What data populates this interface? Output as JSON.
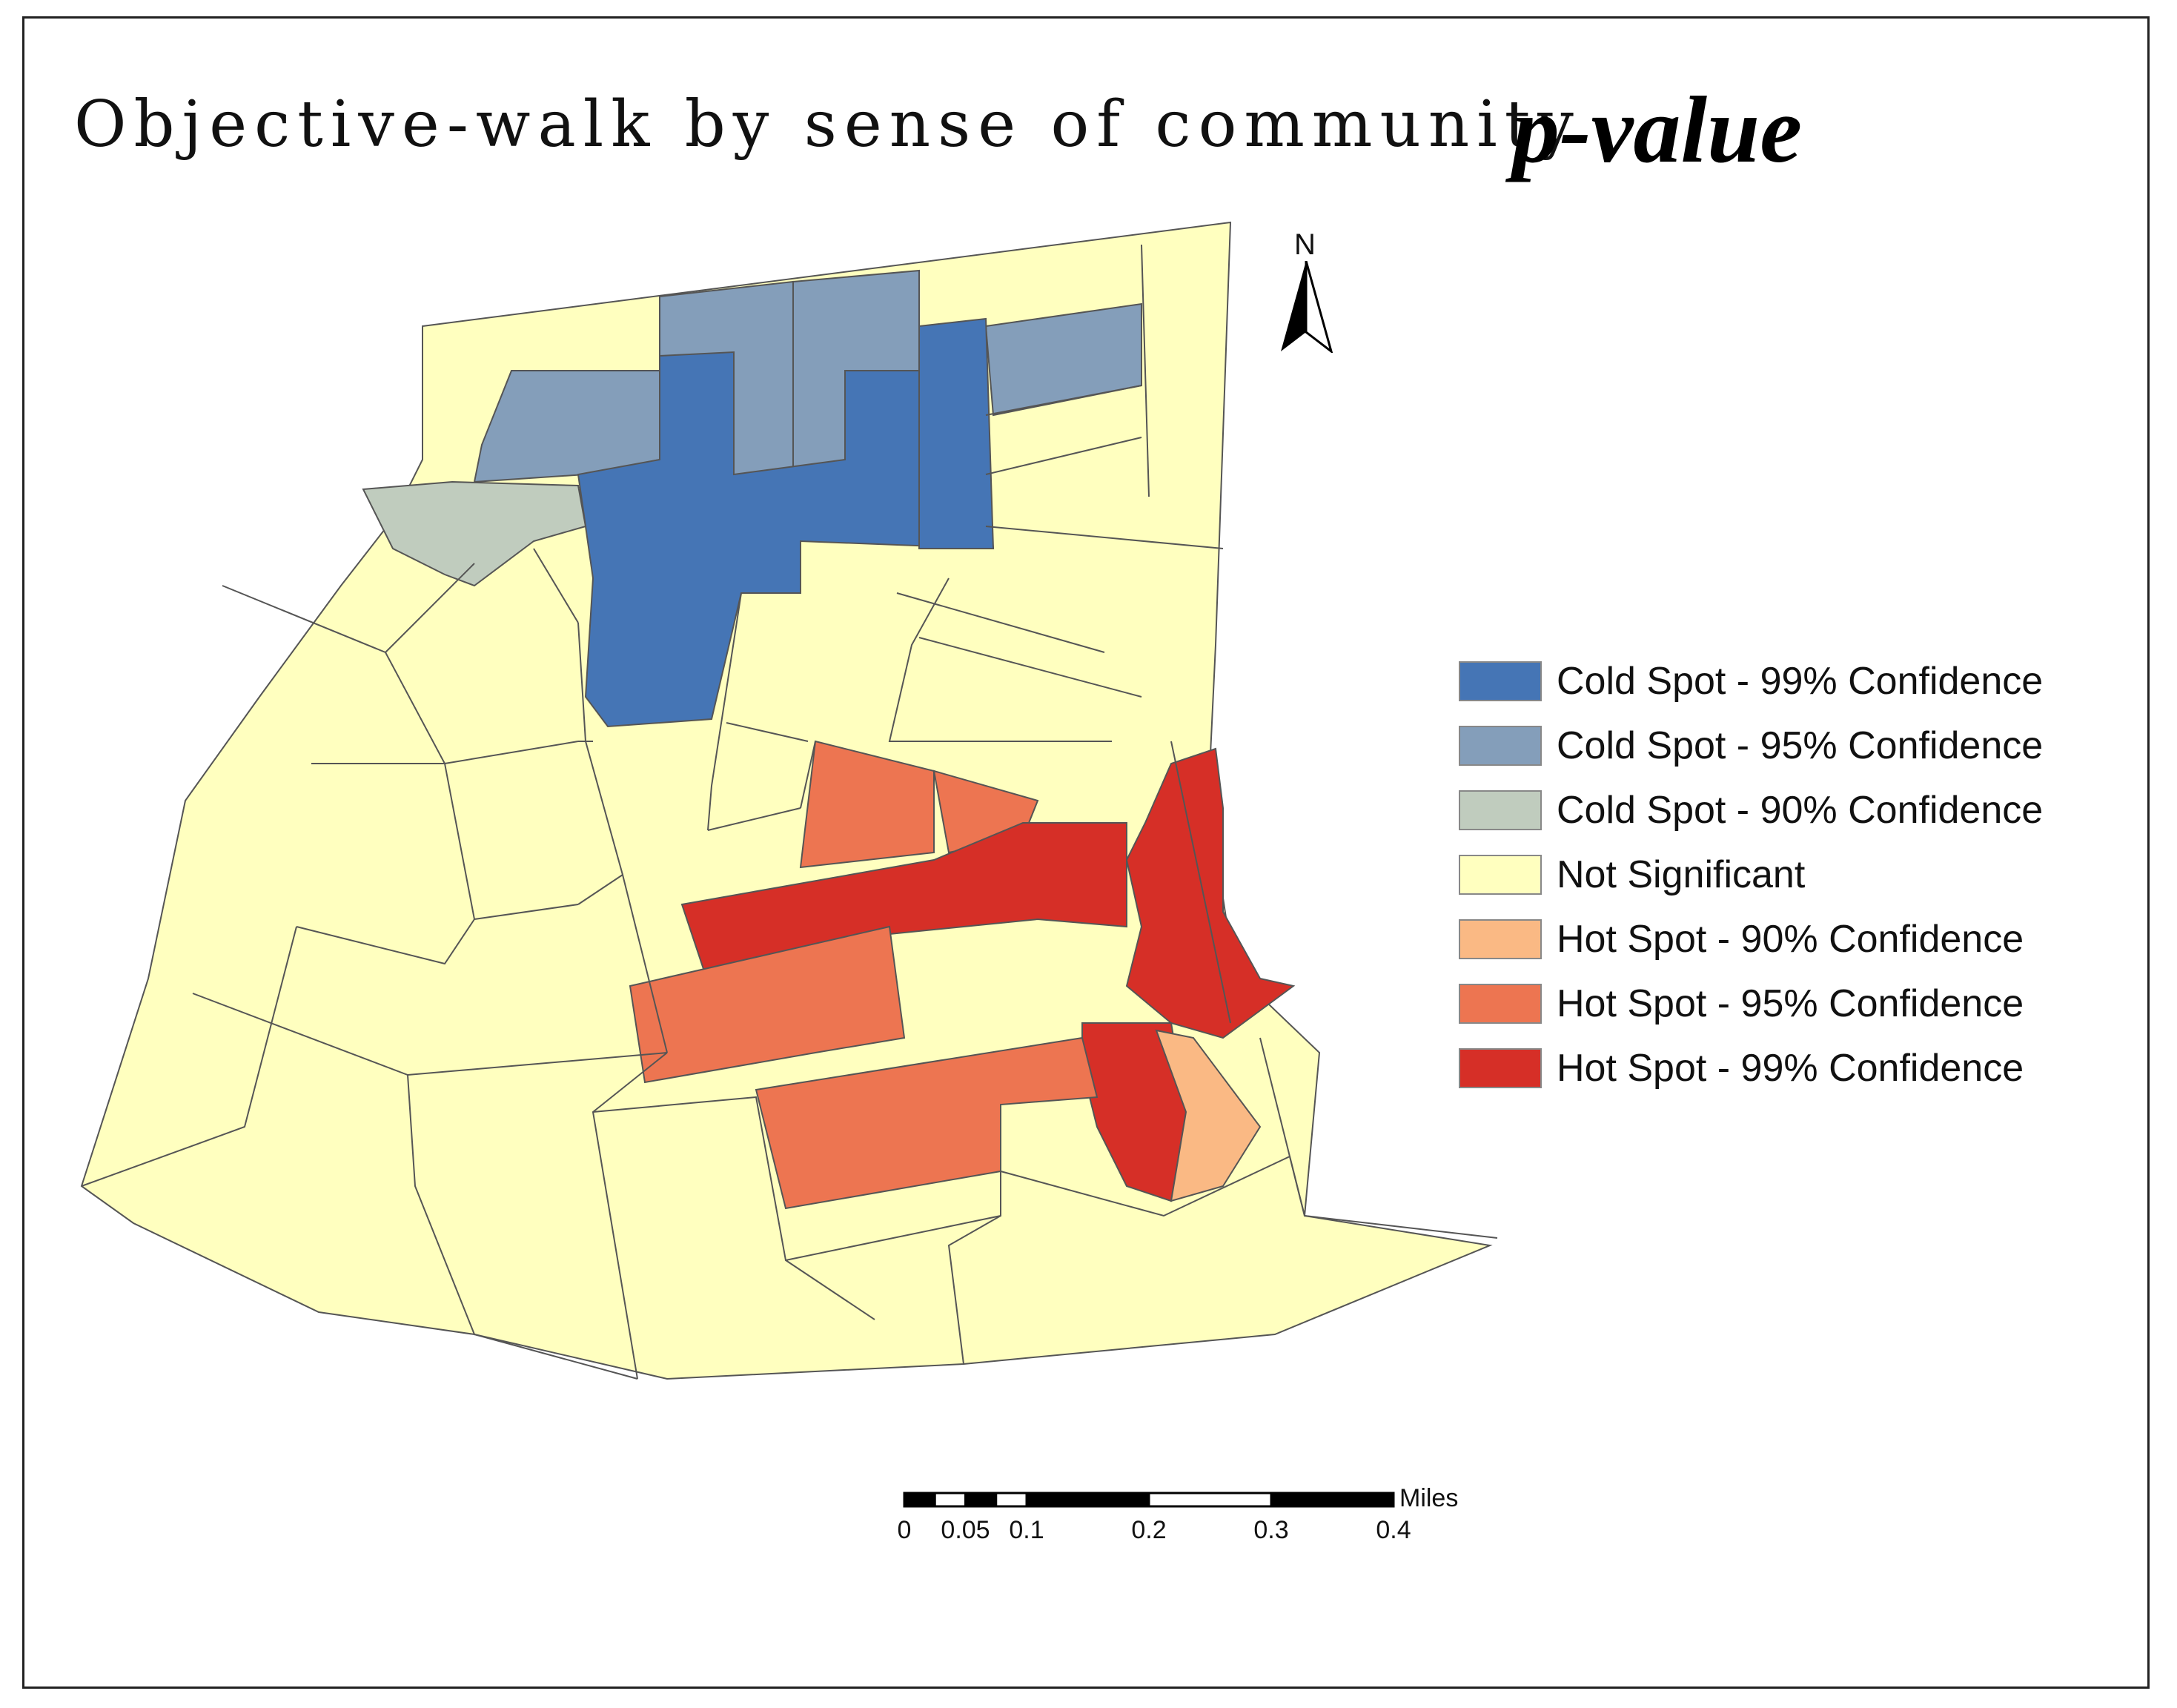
{
  "title": "Objective-walk by sense of community",
  "title_emphasis": "p-value",
  "north_arrow": {
    "label": "N",
    "icon": "north-arrow-icon"
  },
  "legend": {
    "items": [
      {
        "label": "Cold Spot - 99% Confidence",
        "color": "#4575b5"
      },
      {
        "label": "Cold Spot - 95% Confidence",
        "color": "#849eba"
      },
      {
        "label": "Cold Spot - 90% Confidence",
        "color": "#c0ccbe"
      },
      {
        "label": "Not Significant",
        "color": "#ffffbf"
      },
      {
        "label": "Hot Spot - 90% Confidence",
        "color": "#fab984"
      },
      {
        "label": "Hot Spot - 95% Confidence",
        "color": "#ed7551"
      },
      {
        "label": "Hot Spot - 99% Confidence",
        "color": "#d62f27"
      }
    ]
  },
  "scale_bar": {
    "unit": "Miles",
    "tick_labels": [
      "0",
      "0.05",
      "0.1",
      "0.2",
      "0.3",
      "0.4"
    ],
    "tick_values": [
      0,
      0.05,
      0.1,
      0.2,
      0.3,
      0.4
    ]
  },
  "map": {
    "boundary_color": "#555555",
    "regions": [
      {
        "name": "region-not-significant-base",
        "class": 3
      },
      {
        "name": "region-cold-95-west",
        "class": 1
      },
      {
        "name": "region-cold-95-north-a",
        "class": 1
      },
      {
        "name": "region-cold-95-north-b",
        "class": 1
      },
      {
        "name": "region-cold-95-east",
        "class": 1
      },
      {
        "name": "region-cold-99-core",
        "class": 0
      },
      {
        "name": "region-cold-99-east-column",
        "class": 0
      },
      {
        "name": "region-cold-90-west",
        "class": 2
      },
      {
        "name": "region-hot-95-north",
        "class": 5
      },
      {
        "name": "region-hot-95-north-b",
        "class": 5
      },
      {
        "name": "region-hot-99-center",
        "class": 6
      },
      {
        "name": "region-hot-99-east",
        "class": 6
      },
      {
        "name": "region-hot-99-south",
        "class": 6
      },
      {
        "name": "region-hot-95-west",
        "class": 5
      },
      {
        "name": "region-hot-95-south",
        "class": 5
      },
      {
        "name": "region-hot-90-southeast",
        "class": 4
      }
    ]
  }
}
